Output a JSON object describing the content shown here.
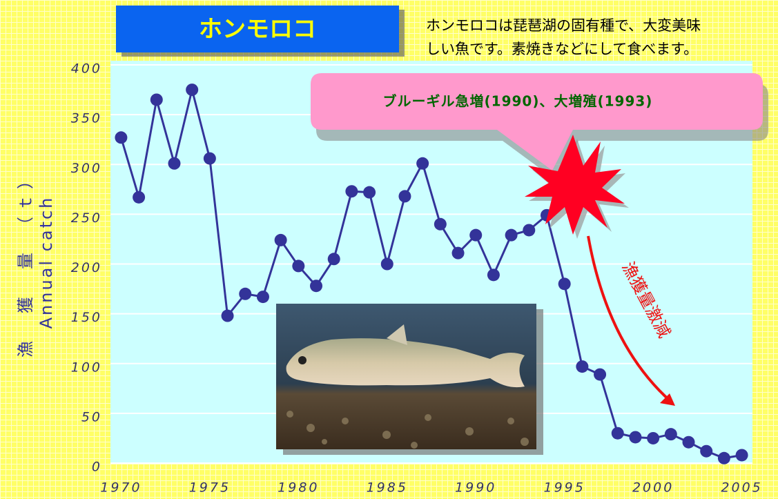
{
  "chart_data": {
    "type": "line",
    "title": "ホンモロコ",
    "description": [
      "ホンモロコは琵琶湖の固有種で、大変美味",
      "しい魚です。素焼きなどにして食べます。"
    ],
    "callout": "ブルーギル急増(1990)、大増殖(1993)",
    "annotation": "漁獲量激減",
    "y_label": "漁　獲　量　（ｔ）",
    "y_label_en": "Annual catch",
    "x": [
      1970,
      1971,
      1972,
      1973,
      1974,
      1975,
      1976,
      1977,
      1978,
      1979,
      1980,
      1981,
      1982,
      1983,
      1984,
      1985,
      1986,
      1987,
      1988,
      1989,
      1990,
      1991,
      1992,
      1993,
      1994,
      1995,
      1996,
      1997,
      1998,
      1999,
      2000,
      2001,
      2002,
      2003,
      2004,
      2005
    ],
    "series": [
      {
        "color": "#333399",
        "values": [
          327,
          267,
          365,
          301,
          375,
          306,
          148,
          170,
          167,
          224,
          198,
          178,
          205,
          273,
          272,
          200,
          268,
          301,
          240,
          211,
          229,
          189,
          229,
          234,
          249,
          180,
          97,
          89,
          30,
          26,
          25,
          29,
          21,
          12,
          5,
          8
        ]
      }
    ],
    "xlim": [
      1969.4,
      2005.6
    ],
    "xticks": [
      1970,
      1975,
      1980,
      1985,
      1990,
      1995,
      2000,
      2005
    ],
    "ylim": [
      0,
      400
    ],
    "yticks": [
      0,
      50,
      100,
      150,
      200,
      250,
      300,
      350,
      400
    ],
    "grid": true
  }
}
